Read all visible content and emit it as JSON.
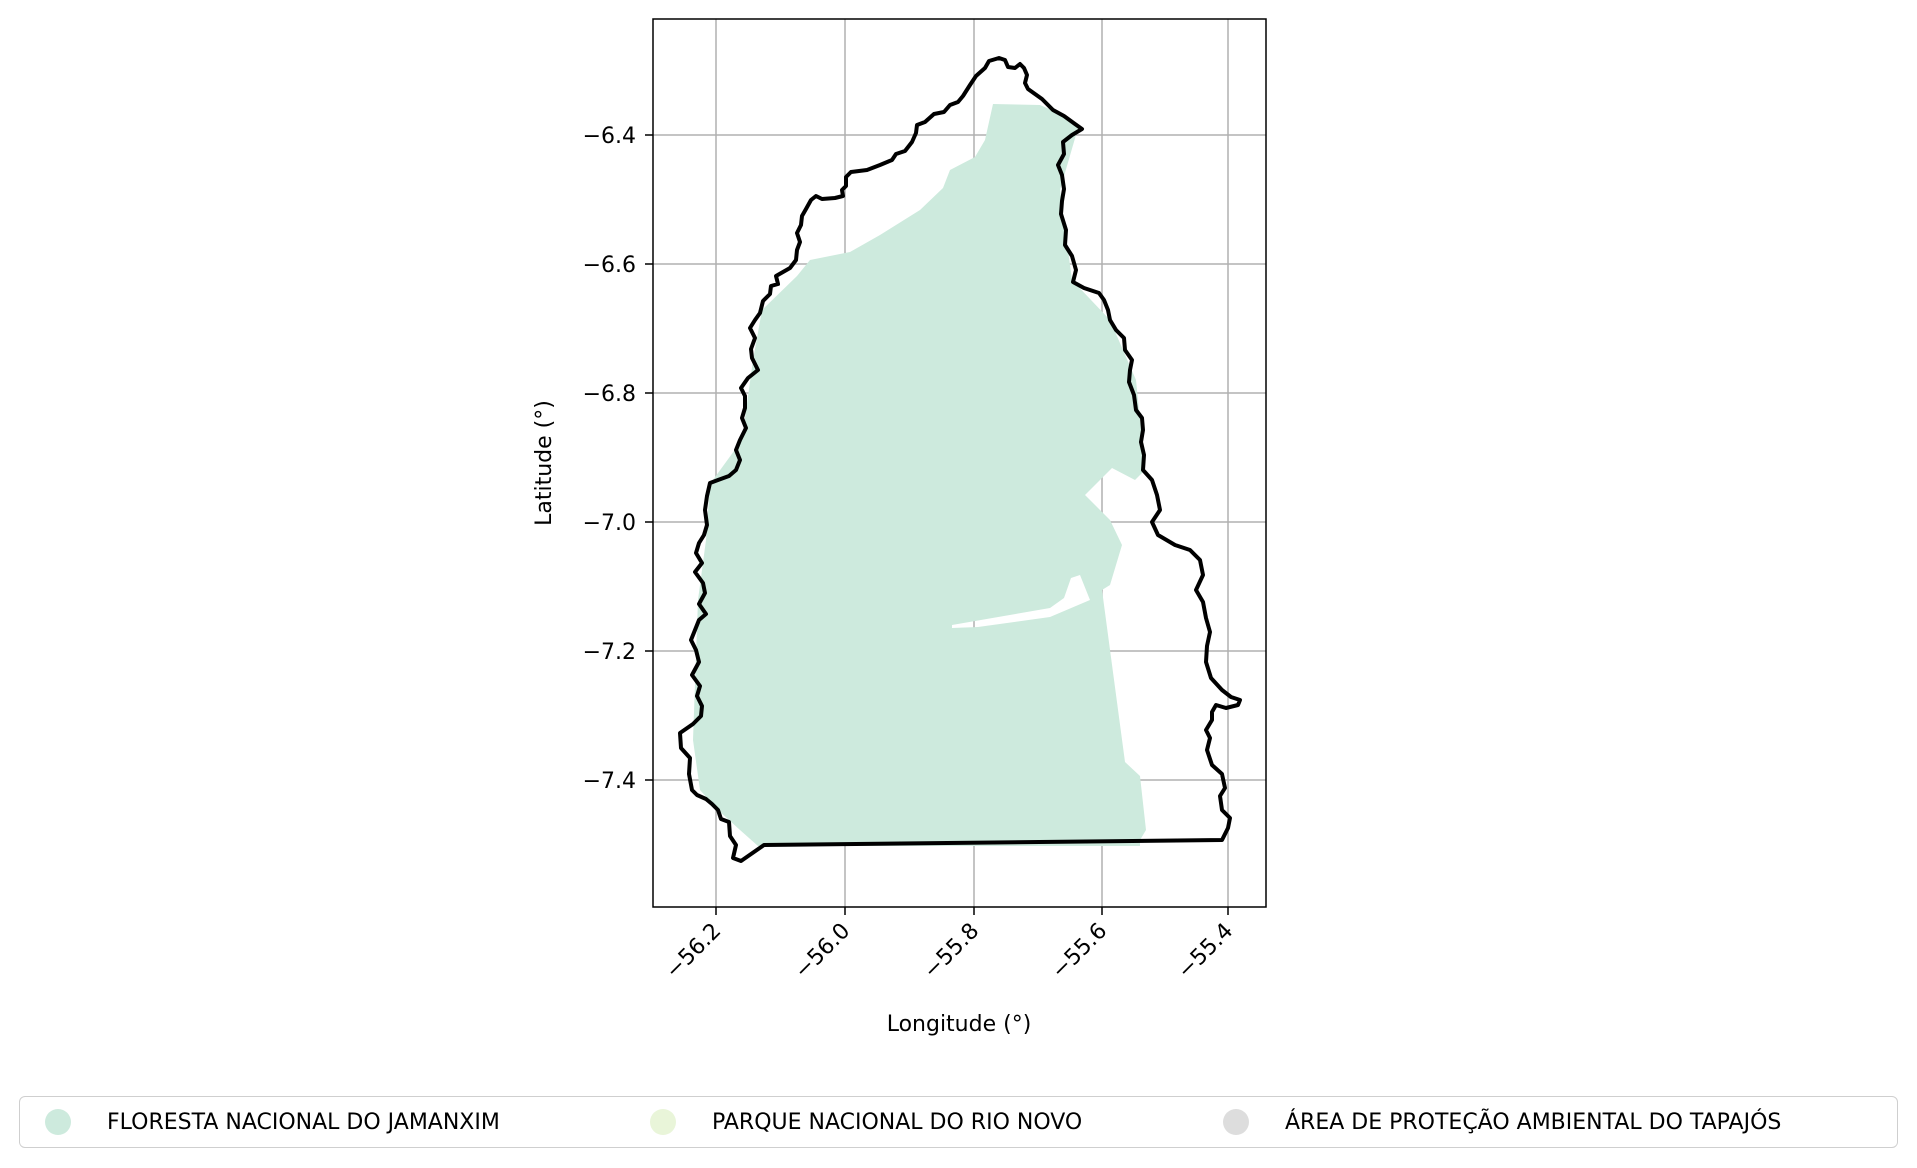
{
  "axes": {
    "xlabel": "Longitude (°)",
    "ylabel": "Latitude (°)",
    "xticks": [
      "−56.2",
      "−56.0",
      "−55.8",
      "−55.6",
      "−55.4"
    ],
    "yticks": [
      "−6.4",
      "−6.6",
      "−6.8",
      "−7.0",
      "−7.2",
      "−7.4"
    ],
    "grid": true
  },
  "legend": {
    "placement": "bottom",
    "items": [
      {
        "label": "FLORESTA NACIONAL DO JAMANXIM",
        "color": "#cdeadd"
      },
      {
        "label": "PARQUE NACIONAL DO RIO NOVO",
        "color": "#e9f5d9"
      },
      {
        "label": "ÁREA DE PROTEÇÃO AMBIENTAL DO TAPAJÓS",
        "color": "#dddddd"
      }
    ]
  },
  "colors": {
    "forest_fill": "#cdeadd",
    "boundary": "#000000",
    "grid": "#b0b0b0"
  }
}
